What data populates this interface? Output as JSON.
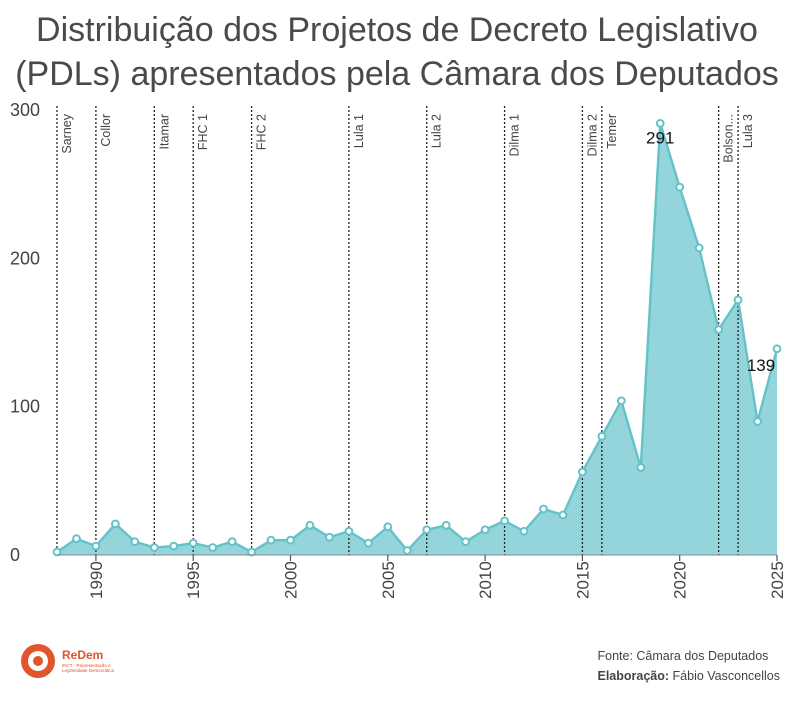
{
  "title_line1": "Distribuição dos Projetos de Decreto Legislativo",
  "title_line2": "(PDLs) apresentados pela Câmara dos Deputados",
  "source": "Fonte: Câmara dos Deputados",
  "credit_label": "Elaboração:",
  "credit_name": "Fábio Vasconcellos",
  "logo": {
    "name": "ReDem",
    "subtitle": "INCT · Representação e Legitimidade Democrática"
  },
  "colors": {
    "area": "#93d5db",
    "line": "#64c2c9",
    "text": "#4a4a4a"
  },
  "chart_data": {
    "type": "area",
    "x": [
      1988,
      1989,
      1990,
      1991,
      1992,
      1993,
      1994,
      1995,
      1996,
      1997,
      1998,
      1999,
      2000,
      2001,
      2002,
      2003,
      2004,
      2005,
      2006,
      2007,
      2008,
      2009,
      2010,
      2011,
      2012,
      2013,
      2014,
      2015,
      2016,
      2017,
      2018,
      2019,
      2020,
      2021,
      2022,
      2023,
      2024,
      2025
    ],
    "values": [
      2,
      11,
      6,
      21,
      9,
      5,
      6,
      8,
      5,
      9,
      2,
      10,
      10,
      20,
      12,
      16,
      8,
      19,
      3,
      17,
      20,
      9,
      17,
      23,
      16,
      31,
      27,
      56,
      80,
      104,
      59,
      291,
      248,
      207,
      152,
      172,
      90,
      139
    ],
    "ylim": [
      0,
      300
    ],
    "yticks": [
      0,
      100,
      200,
      300
    ],
    "xticks": [
      1990,
      1995,
      2000,
      2005,
      2010,
      2015,
      2020,
      2025
    ],
    "annotations": [
      {
        "x": 2019,
        "value": 291,
        "label": "291"
      },
      {
        "x": 2025,
        "value": 139,
        "label": "139"
      }
    ],
    "presidencies": [
      {
        "x": 1988.0,
        "label": "Sarney"
      },
      {
        "x": 1990.0,
        "label": "Collor"
      },
      {
        "x": 1993.0,
        "label": "Itamar"
      },
      {
        "x": 1995.0,
        "label": "FHC 1"
      },
      {
        "x": 1998.0,
        "label": "FHC 2"
      },
      {
        "x": 2003.0,
        "label": "Lula 1"
      },
      {
        "x": 2007.0,
        "label": "Lula 2"
      },
      {
        "x": 2011.0,
        "label": "Dilma 1"
      },
      {
        "x": 2015.0,
        "label": "Dilma 2"
      },
      {
        "x": 2016.0,
        "label": "Temer"
      },
      {
        "x": 2022.0,
        "label": "Bolson..."
      },
      {
        "x": 2023.0,
        "label": "Lula 3"
      }
    ],
    "grid": false
  }
}
